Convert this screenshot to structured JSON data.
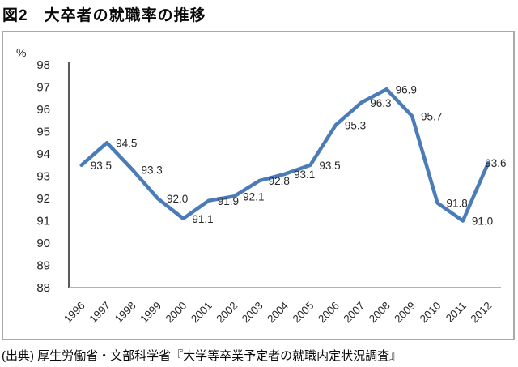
{
  "title": "図2　大卒者の就職率の推移",
  "caption": "(出典) 厚生労働省・文部科学省『大学等卒業予定者の就職内定状況調査』",
  "chart_data": {
    "type": "line",
    "title": "図2　大卒者の就職率の推移",
    "categories": [
      "1996",
      "1997",
      "1998",
      "1999",
      "2000",
      "2001",
      "2002",
      "2003",
      "2004",
      "2005",
      "2006",
      "2007",
      "2008",
      "2009",
      "2010",
      "2011",
      "2012"
    ],
    "values": [
      93.5,
      94.5,
      93.3,
      92.0,
      91.1,
      91.9,
      92.1,
      92.8,
      93.1,
      93.5,
      95.3,
      96.3,
      96.9,
      95.7,
      91.8,
      91.0,
      93.6
    ],
    "xlabel": "",
    "ylabel": "%",
    "ylim": [
      88,
      98
    ],
    "ytick_step": 1,
    "grid": false,
    "legend": "none",
    "data_labels": true,
    "label_decimals": 1,
    "colors": {
      "line": "#4b7cb8",
      "y_axis": "#595959",
      "x_axis": "#9a9a9a",
      "box_border": "#aaaaaa",
      "text": "#262626"
    }
  }
}
